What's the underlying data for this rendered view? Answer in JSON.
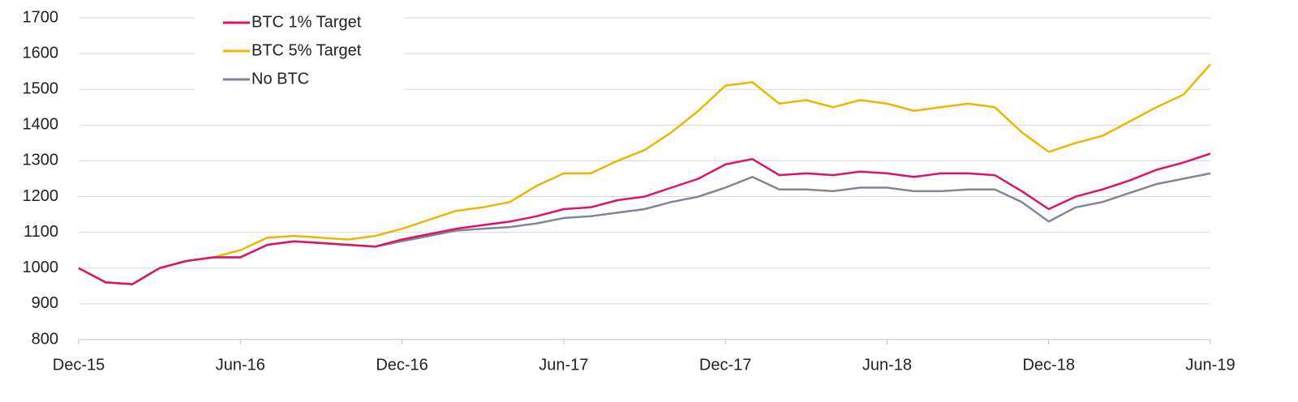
{
  "chart_data": {
    "type": "line",
    "categories": [
      "Dec-15",
      null,
      null,
      null,
      null,
      null,
      "Jun-16",
      null,
      null,
      null,
      null,
      null,
      "Dec-16",
      null,
      null,
      null,
      null,
      null,
      "Jun-17",
      null,
      null,
      null,
      null,
      null,
      "Dec-17",
      null,
      null,
      null,
      null,
      null,
      "Jun-18",
      null,
      null,
      null,
      null,
      null,
      "Dec-18",
      null,
      null,
      null,
      null,
      null,
      "Jun-19"
    ],
    "series": [
      {
        "name": "BTC 1% Target",
        "color": "#e0116a",
        "values": [
          1000,
          960,
          955,
          1000,
          1020,
          1030,
          1030,
          1065,
          1075,
          1070,
          1065,
          1060,
          1080,
          1095,
          1110,
          1120,
          1130,
          1145,
          1165,
          1170,
          1190,
          1200,
          1225,
          1250,
          1290,
          1305,
          1260,
          1265,
          1260,
          1270,
          1265,
          1255,
          1265,
          1265,
          1260,
          1215,
          1165,
          1200,
          1220,
          1245,
          1275,
          1295,
          1320
        ]
      },
      {
        "name": "BTC 5% Target",
        "color": "#f0b400",
        "values": [
          1000,
          960,
          955,
          1000,
          1020,
          1030,
          1050,
          1085,
          1090,
          1085,
          1080,
          1090,
          1110,
          1135,
          1160,
          1170,
          1185,
          1230,
          1265,
          1265,
          1300,
          1330,
          1380,
          1440,
          1510,
          1520,
          1460,
          1470,
          1450,
          1470,
          1460,
          1440,
          1450,
          1460,
          1450,
          1380,
          1325,
          1350,
          1370,
          1410,
          1450,
          1485,
          1570
        ]
      },
      {
        "name": "No BTC",
        "color": "#7f8795",
        "values": [
          1000,
          960,
          955,
          1000,
          1020,
          1030,
          1030,
          1065,
          1075,
          1070,
          1065,
          1060,
          1075,
          1090,
          1105,
          1110,
          1115,
          1125,
          1140,
          1145,
          1155,
          1165,
          1185,
          1200,
          1225,
          1255,
          1220,
          1220,
          1215,
          1225,
          1225,
          1215,
          1215,
          1220,
          1220,
          1185,
          1130,
          1170,
          1185,
          1210,
          1235,
          1250,
          1265
        ]
      }
    ],
    "ylim": [
      800,
      1700
    ],
    "yticks": [
      800,
      900,
      1000,
      1100,
      1200,
      1300,
      1400,
      1500,
      1600,
      1700
    ],
    "grid": true,
    "legend": "top-left"
  }
}
